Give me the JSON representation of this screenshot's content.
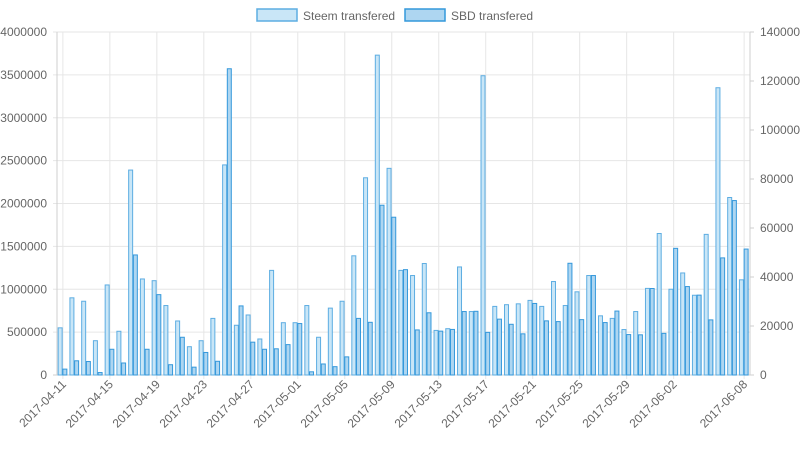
{
  "chart_data": {
    "type": "bar",
    "legend_position": "top-center",
    "grid": true,
    "x": [
      "2017-04-11",
      "2017-04-12",
      "2017-04-13",
      "2017-04-14",
      "2017-04-15",
      "2017-04-16",
      "2017-04-17",
      "2017-04-18",
      "2017-04-19",
      "2017-04-20",
      "2017-04-21",
      "2017-04-22",
      "2017-04-23",
      "2017-04-24",
      "2017-04-25",
      "2017-04-26",
      "2017-04-27",
      "2017-04-28",
      "2017-04-29",
      "2017-04-30",
      "2017-05-01",
      "2017-05-02",
      "2017-05-03",
      "2017-05-04",
      "2017-05-05",
      "2017-05-06",
      "2017-05-07",
      "2017-05-08",
      "2017-05-09",
      "2017-05-10",
      "2017-05-11",
      "2017-05-12",
      "2017-05-13",
      "2017-05-14",
      "2017-05-15",
      "2017-05-16",
      "2017-05-17",
      "2017-05-18",
      "2017-05-19",
      "2017-05-20",
      "2017-05-21",
      "2017-05-22",
      "2017-05-23",
      "2017-05-24",
      "2017-05-25",
      "2017-05-26",
      "2017-05-27",
      "2017-05-28",
      "2017-05-29",
      "2017-05-30",
      "2017-05-31",
      "2017-06-01",
      "2017-06-02",
      "2017-06-03",
      "2017-06-04",
      "2017-06-05",
      "2017-06-06",
      "2017-06-07",
      "2017-06-08"
    ],
    "x_tick_labels": [
      "2017-04-11",
      "2017-04-15",
      "2017-04-19",
      "2017-04-23",
      "2017-04-27",
      "2017-05-01",
      "2017-05-05",
      "2017-05-09",
      "2017-05-13",
      "2017-05-17",
      "2017-05-21",
      "2017-05-25",
      "2017-05-29",
      "2017-06-02",
      "2017-06-08"
    ],
    "y_left": {
      "min": 0,
      "max": 4000000,
      "ticks": [
        "0",
        "500000",
        "1000000",
        "1500000",
        "2000000",
        "2500000",
        "3000000",
        "3500000",
        "4000000"
      ]
    },
    "y_right": {
      "min": 0,
      "max": 140000,
      "ticks": [
        "0",
        "20000",
        "40000",
        "60000",
        "80000",
        "100000",
        "120000",
        "140000"
      ]
    },
    "series": [
      {
        "name": "Steem transfered",
        "axis": "left",
        "color": "#c9e6f7",
        "border": "#5dade2",
        "values": [
          550000,
          900000,
          860000,
          400000,
          1050000,
          510000,
          2390000,
          1120000,
          1100000,
          810000,
          630000,
          330000,
          400000,
          660000,
          2450000,
          580000,
          700000,
          420000,
          1220000,
          610000,
          610000,
          810000,
          440000,
          780000,
          860000,
          1390000,
          2300000,
          3730000,
          2410000,
          1220000,
          1160000,
          1300000,
          520000,
          540000,
          1260000,
          740000,
          3490000,
          800000,
          820000,
          830000,
          870000,
          800000,
          1090000,
          810000,
          970000,
          1160000,
          690000,
          660000,
          530000,
          740000,
          1010000,
          1650000,
          1000000,
          1190000,
          930000,
          1640000,
          3350000,
          2070000,
          1110000
        ]
      },
      {
        "name": "SBD transfered",
        "axis": "right",
        "color": "#aed6f1",
        "border": "#3498db",
        "values": [
          2400,
          5800,
          5500,
          1000,
          10500,
          4900,
          49000,
          10500,
          32800,
          4200,
          15400,
          3200,
          9200,
          5600,
          125000,
          28200,
          13400,
          10500,
          10700,
          12400,
          21000,
          1300,
          4500,
          3400,
          7400,
          23100,
          21500,
          69300,
          64400,
          43000,
          18400,
          25400,
          17900,
          18600,
          25900,
          26000,
          17400,
          22800,
          20700,
          16800,
          29200,
          22100,
          21800,
          45600,
          22600,
          40600,
          21400,
          26100,
          16500,
          16400,
          35300,
          17000,
          51700,
          36100,
          32600,
          22500,
          47800,
          71200,
          51400
        ]
      }
    ]
  }
}
